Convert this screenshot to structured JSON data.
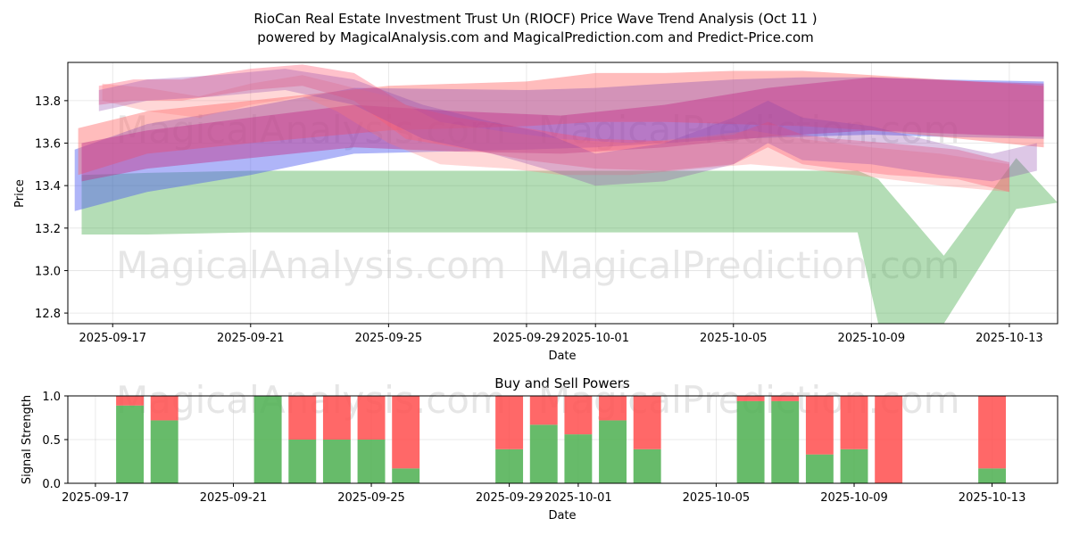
{
  "chart_data": [
    {
      "type": "area",
      "title": "RioCan Real Estate Investment Trust Un (RIOCF) Price Wave Trend Analysis (Oct 11 )",
      "subtitle": "powered by MagicalAnalysis.com and MagicalPrediction.com and Predict-Price.com",
      "xlabel": "Date",
      "ylabel": "Price",
      "ylim": [
        12.75,
        13.98
      ],
      "xlim_days": [
        -1.3,
        27.4
      ],
      "x_ticks": [
        {
          "label": "2025-09-17",
          "day": 0
        },
        {
          "label": "2025-09-21",
          "day": 4
        },
        {
          "label": "2025-09-25",
          "day": 8
        },
        {
          "label": "2025-09-29",
          "day": 12
        },
        {
          "label": "2025-10-01",
          "day": 14
        },
        {
          "label": "2025-10-05",
          "day": 18
        },
        {
          "label": "2025-10-09",
          "day": 22
        },
        {
          "label": "2025-10-13",
          "day": 26
        }
      ],
      "y_ticks": [
        12.8,
        13.0,
        13.2,
        13.4,
        13.6,
        13.8
      ],
      "grid": true,
      "watermarks": [
        "MagicalAnalysis.com",
        "MagicalPrediction.com"
      ],
      "bands": [
        {
          "name": "green-band",
          "color": "#4caf50",
          "opacity": 0.42,
          "x": [
            -0.9,
            1,
            4,
            8,
            12,
            16,
            20,
            21.6,
            22.2,
            24.1,
            26.2,
            27.4
          ],
          "upper": [
            13.45,
            13.46,
            13.47,
            13.47,
            13.47,
            13.47,
            13.47,
            13.47,
            13.43,
            13.07,
            13.53,
            13.32
          ],
          "lower": [
            13.17,
            13.17,
            13.18,
            13.18,
            13.18,
            13.18,
            13.18,
            13.18,
            12.75,
            12.75,
            13.29,
            13.32
          ]
        },
        {
          "name": "blue-band",
          "color": "#4d5cf0",
          "opacity": 0.45,
          "x": [
            -1.1,
            1,
            4,
            7,
            12,
            14,
            16,
            18,
            20,
            22,
            24,
            27
          ],
          "upper": [
            13.57,
            13.69,
            13.77,
            13.86,
            13.85,
            13.86,
            13.88,
            13.9,
            13.91,
            13.91,
            13.9,
            13.89
          ],
          "lower": [
            13.28,
            13.37,
            13.45,
            13.55,
            13.57,
            13.58,
            13.6,
            13.62,
            13.63,
            13.64,
            13.63,
            13.62
          ]
        },
        {
          "name": "red-band-upper",
          "color": "#ff6b6b",
          "opacity": 0.45,
          "x": [
            -1.0,
            1,
            4,
            8,
            12,
            14,
            16,
            18,
            20,
            22,
            24,
            27
          ],
          "upper": [
            13.67,
            13.75,
            13.8,
            13.87,
            13.89,
            13.93,
            13.93,
            13.94,
            13.94,
            13.92,
            13.9,
            13.87
          ],
          "lower": [
            13.45,
            13.55,
            13.6,
            13.66,
            13.68,
            13.7,
            13.7,
            13.69,
            13.68,
            13.66,
            13.63,
            13.58
          ]
        },
        {
          "name": "magenta-band",
          "color": "#c0308a",
          "opacity": 0.45,
          "x": [
            -0.9,
            1,
            4,
            7,
            10,
            13,
            16,
            19,
            22,
            25,
            27
          ],
          "upper": [
            13.6,
            13.66,
            13.72,
            13.78,
            13.75,
            13.73,
            13.78,
            13.86,
            13.91,
            13.89,
            13.88
          ],
          "lower": [
            13.42,
            13.48,
            13.53,
            13.58,
            13.56,
            13.55,
            13.58,
            13.63,
            13.66,
            13.64,
            13.63
          ]
        },
        {
          "name": "wave-red-1",
          "color": "#ff4d6a",
          "opacity": 0.35,
          "x": [
            -0.4,
            0.6,
            2,
            4,
            5.5,
            7,
            8.5,
            10,
            12,
            14,
            16,
            18,
            19,
            20,
            21,
            22.5,
            24.5,
            26
          ],
          "upper": [
            13.87,
            13.9,
            13.9,
            13.95,
            13.97,
            13.93,
            13.78,
            13.72,
            13.67,
            13.62,
            13.61,
            13.64,
            13.7,
            13.64,
            13.62,
            13.6,
            13.57,
            13.51
          ],
          "lower": [
            13.78,
            13.8,
            13.8,
            13.85,
            13.87,
            13.8,
            13.62,
            13.58,
            13.52,
            13.48,
            13.47,
            13.5,
            13.58,
            13.5,
            13.48,
            13.45,
            13.43,
            13.37
          ]
        },
        {
          "name": "wave-red-2",
          "color": "#ff7b7b",
          "opacity": 0.3,
          "x": [
            -0.3,
            1,
            2.5,
            4,
            5.5,
            6.5,
            8,
            9.5,
            11.5,
            13,
            15,
            17,
            18.5,
            20,
            22,
            24,
            26
          ],
          "upper": [
            13.88,
            13.86,
            13.82,
            13.88,
            13.92,
            13.88,
            13.82,
            13.7,
            13.65,
            13.62,
            13.6,
            13.63,
            13.66,
            13.62,
            13.58,
            13.55,
            13.5
          ],
          "lower": [
            13.8,
            13.75,
            13.72,
            13.78,
            13.82,
            13.75,
            13.6,
            13.5,
            13.48,
            13.45,
            13.45,
            13.48,
            13.5,
            13.48,
            13.44,
            13.4,
            13.37
          ]
        },
        {
          "name": "wave-purple",
          "color": "#8e44ad",
          "opacity": 0.3,
          "x": [
            -0.4,
            1,
            3,
            5,
            7,
            9,
            11,
            12.5,
            14,
            16,
            18,
            19,
            20,
            22,
            24,
            25.5,
            26.8
          ],
          "upper": [
            13.85,
            13.9,
            13.92,
            13.95,
            13.9,
            13.78,
            13.7,
            13.65,
            13.55,
            13.6,
            13.72,
            13.8,
            13.72,
            13.68,
            13.6,
            13.55,
            13.6
          ],
          "lower": [
            13.75,
            13.8,
            13.82,
            13.85,
            13.78,
            13.62,
            13.55,
            13.48,
            13.4,
            13.42,
            13.5,
            13.6,
            13.52,
            13.5,
            13.45,
            13.42,
            13.47
          ]
        }
      ]
    },
    {
      "type": "bar",
      "title": "Buy and Sell Powers",
      "xlabel": "Date",
      "ylabel": "Signal Strength",
      "ylim": [
        0,
        1.0
      ],
      "y_ticks": [
        0.0,
        0.5,
        1.0
      ],
      "x_ticks": [
        {
          "label": "2025-09-17",
          "day": 0
        },
        {
          "label": "2025-09-21",
          "day": 4
        },
        {
          "label": "2025-09-25",
          "day": 8
        },
        {
          "label": "2025-09-29",
          "day": 12
        },
        {
          "label": "2025-10-01",
          "day": 14
        },
        {
          "label": "2025-10-05",
          "day": 18
        },
        {
          "label": "2025-10-09",
          "day": 22
        },
        {
          "label": "2025-10-13",
          "day": 26
        }
      ],
      "series": [
        {
          "name": "Buy",
          "color": "#4caf50"
        },
        {
          "name": "Sell",
          "color": "#ff4d4d"
        }
      ],
      "days": [
        1,
        2,
        5,
        6,
        7,
        8,
        9,
        12,
        13,
        14,
        15,
        16,
        19,
        20,
        21,
        22,
        23,
        26
      ],
      "buy": [
        0.89,
        0.72,
        1.0,
        0.5,
        0.5,
        0.5,
        0.17,
        0.39,
        0.67,
        0.56,
        0.72,
        0.39,
        0.94,
        0.94,
        0.33,
        0.39,
        0.0,
        0.17
      ],
      "sell": [
        0.11,
        0.28,
        0.0,
        0.5,
        0.5,
        0.5,
        0.83,
        0.61,
        0.33,
        0.44,
        0.28,
        0.61,
        0.06,
        0.06,
        0.67,
        0.61,
        1.0,
        0.83
      ],
      "watermarks": [
        "MagicalAnalysis.com",
        "MagicalPrediction.com"
      ]
    }
  ]
}
